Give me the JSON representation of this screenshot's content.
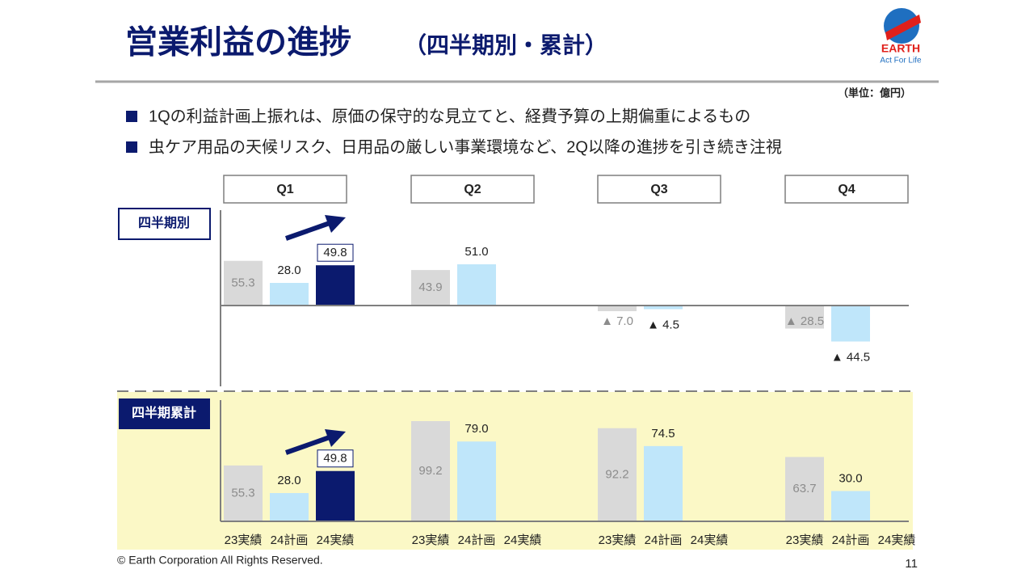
{
  "header": {
    "title": "営業利益の進捗",
    "subtitle": "（四半期別・累計）",
    "unit": "（単位：億円）"
  },
  "logo": {
    "name": "EARTH",
    "tagline": "Act For Life"
  },
  "bullets": [
    "1Qの利益計画上振れは、原価の保守的な見立てと、経費予算の上期偏重によるもの",
    "虫ケア用品の天候リスク、日用品の厳しい事業環境など、2Q以降の進捗を引き続き注視"
  ],
  "footer": {
    "copyright": "© Earth Corporation  All Rights Reserved.",
    "page": "11"
  },
  "chart_data": [
    {
      "type": "bar",
      "label": "四半期別",
      "categories": [
        "Q1",
        "Q2",
        "Q3",
        "Q4"
      ],
      "ylim": [
        -100,
        118
      ],
      "series": [
        {
          "name": "23実績",
          "color": "#d9d9d9",
          "values": [
            55.3,
            43.9,
            -7.0,
            -28.5
          ],
          "value_labels": [
            "55.3",
            "43.9",
            "▲ 7.0",
            "▲ 28.5"
          ]
        },
        {
          "name": "24計画",
          "color": "#bfe6fa",
          "values": [
            28.0,
            51.0,
            -4.5,
            -44.5
          ],
          "value_labels": [
            "28.0",
            "51.0",
            "▲ 4.5",
            "▲ 44.5"
          ]
        },
        {
          "name": "24実績",
          "color": "#0b1a6e",
          "values": [
            49.8,
            null,
            null,
            null
          ],
          "value_labels": [
            "49.8",
            null,
            null,
            null
          ]
        }
      ]
    },
    {
      "type": "bar",
      "label": "四半期累計",
      "categories": [
        "Q1",
        "Q2",
        "Q3",
        "Q4"
      ],
      "ylim": [
        0,
        120
      ],
      "series": [
        {
          "name": "23実績",
          "color": "#d9d9d9",
          "values": [
            55.3,
            99.2,
            92.2,
            63.7
          ],
          "value_labels": [
            "55.3",
            "99.2",
            "92.2",
            "63.7"
          ]
        },
        {
          "name": "24計画",
          "color": "#bfe6fa",
          "values": [
            28.0,
            79.0,
            74.5,
            30.0
          ],
          "value_labels": [
            "28.0",
            "79.0",
            "74.5",
            "30.0"
          ]
        },
        {
          "name": "24実績",
          "color": "#0b1a6e",
          "values": [
            49.8,
            null,
            null,
            null
          ],
          "value_labels": [
            "49.8",
            null,
            null,
            null
          ]
        }
      ]
    }
  ]
}
